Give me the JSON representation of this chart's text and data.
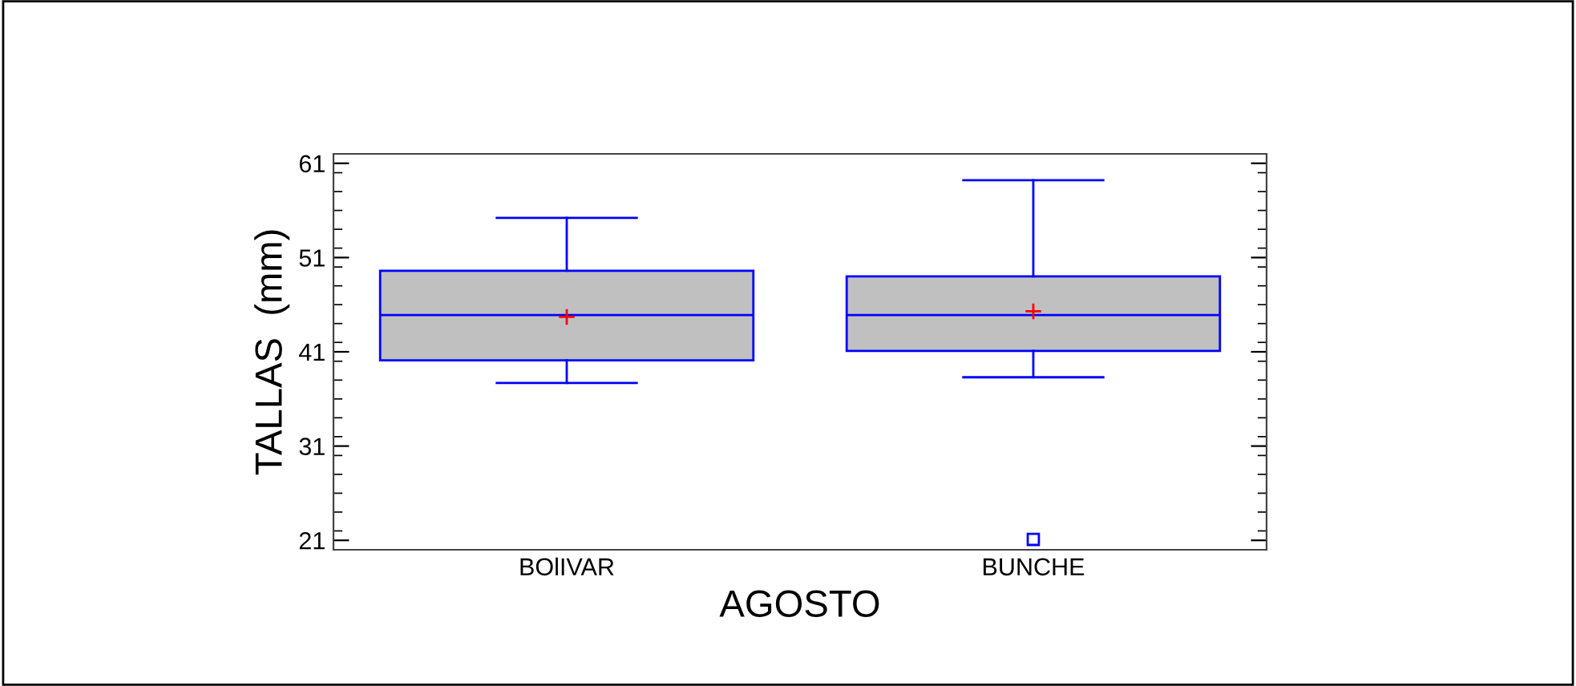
{
  "chart_data": {
    "type": "box",
    "xlabel": "AGOSTO",
    "ylabel": "TALLAS  (mm)",
    "categories": [
      "BOlIVAR",
      "BUNCHE"
    ],
    "boxes": [
      {
        "low": 37.7,
        "q1": 40.1,
        "median": 44.9,
        "q3": 49.6,
        "high": 55.2,
        "mean": 44.7
      },
      {
        "low": 38.3,
        "q1": 41.1,
        "median": 44.9,
        "q3": 49.0,
        "high": 59.2,
        "mean": 45.3,
        "outliers": [
          21.1
        ]
      }
    ],
    "color": "#0000ff",
    "ylim": [
      20,
      62
    ],
    "yticks": [
      21,
      31,
      41,
      51,
      61
    ],
    "grid": false,
    "legend": false
  }
}
